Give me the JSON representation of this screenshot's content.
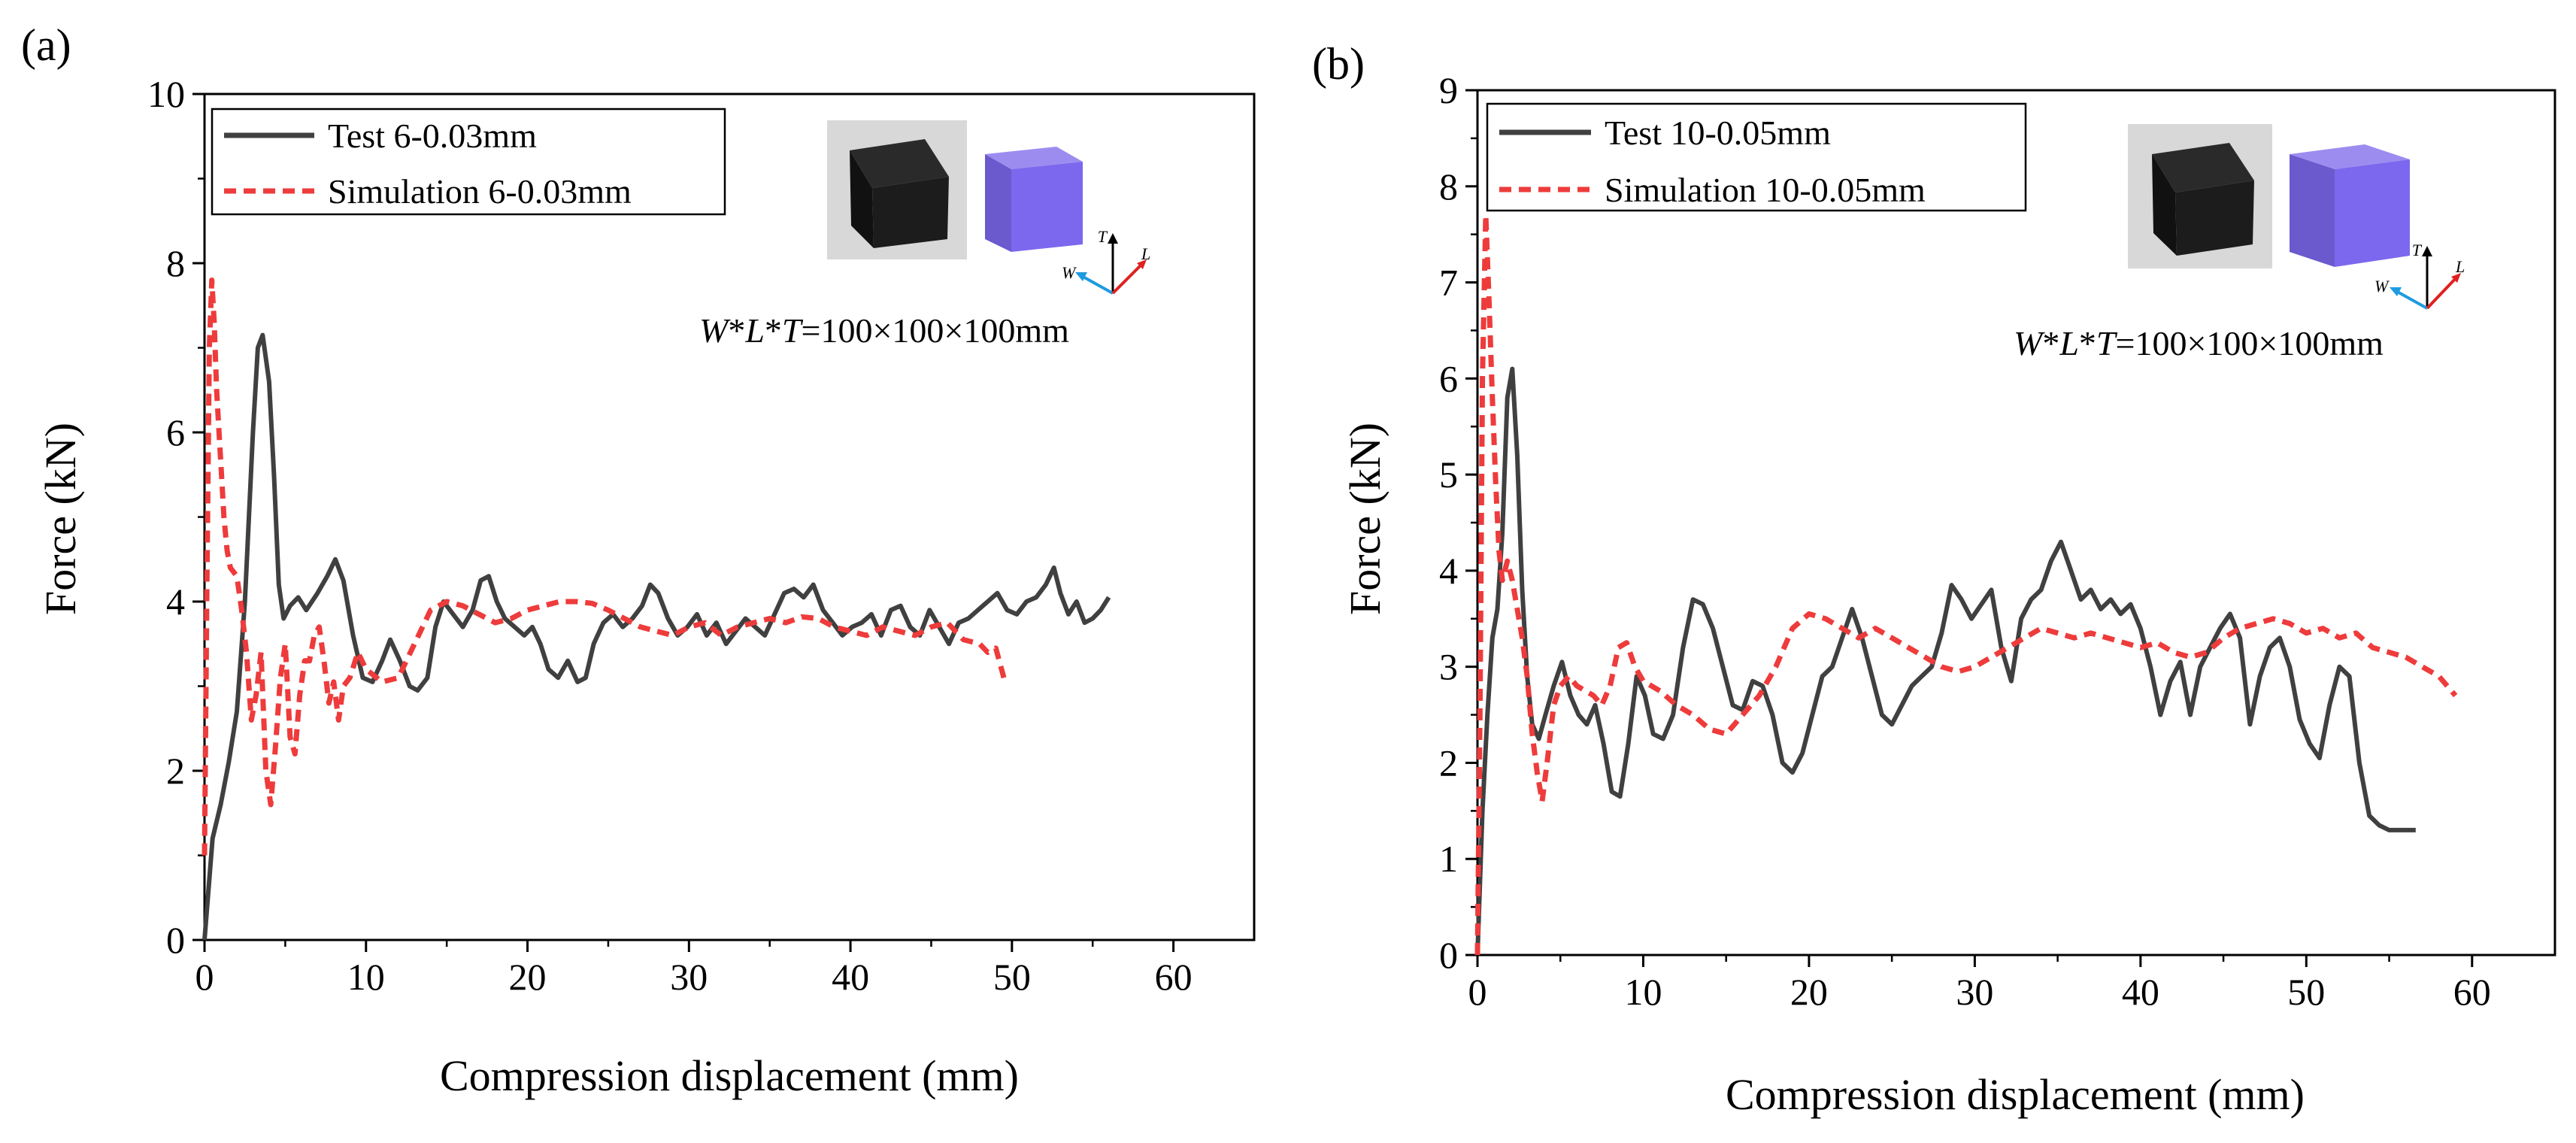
{
  "chart_data": [
    {
      "type": "line",
      "panel_label": "(a)",
      "xlabel": "Compression displacement (mm)",
      "ylabel": "Force (kN)",
      "xlim": [
        0,
        65
      ],
      "ylim": [
        0,
        10
      ],
      "xticks": [
        0,
        10,
        20,
        30,
        40,
        50,
        60
      ],
      "yticks": [
        0,
        2,
        4,
        6,
        8,
        10
      ],
      "legend_position": "top-left",
      "dimension_text": "W*L*T=100×100×100mm",
      "dimension_parts": {
        "w": "W",
        "l": "L",
        "t": "T",
        "rest": "=100×100×100mm"
      },
      "triad_labels": {
        "t": "T",
        "l": "L",
        "w": "W"
      },
      "series": [
        {
          "name": "Test 6-0.03mm",
          "color": "#404040",
          "style": "solid",
          "x": [
            0,
            0.5,
            1,
            1.5,
            2,
            2.5,
            3,
            3.3,
            3.6,
            4,
            4.3,
            4.6,
            4.9,
            5.3,
            5.8,
            6.3,
            7,
            7.6,
            8.1,
            8.6,
            9.2,
            9.8,
            10.4,
            11,
            11.5,
            12.1,
            12.7,
            13.2,
            13.8,
            14.3,
            14.8,
            15.4,
            16,
            16.6,
            17.1,
            17.6,
            18.1,
            18.6,
            19.2,
            19.8,
            20.3,
            20.8,
            21.3,
            21.9,
            22.5,
            23.1,
            23.6,
            24.1,
            24.7,
            25.3,
            25.9,
            26.5,
            27.1,
            27.6,
            28.1,
            28.7,
            29.3,
            29.9,
            30.5,
            31.1,
            31.7,
            32.3,
            32.9,
            33.5,
            34.1,
            34.7,
            35.3,
            35.9,
            36.5,
            37.1,
            37.7,
            38.3,
            38.9,
            39.5,
            40.1,
            40.7,
            41.3,
            41.9,
            42.5,
            43.1,
            43.7,
            44.3,
            44.9,
            45.5,
            46.1,
            46.7,
            47.3,
            47.9,
            48.5,
            49.1,
            49.7,
            50.3,
            50.9,
            51.5,
            52.1,
            52.6,
            53,
            53.5,
            54,
            54.5,
            55,
            55.5,
            56
          ],
          "y": [
            0,
            1.2,
            1.6,
            2.1,
            2.7,
            4.0,
            6.0,
            7.0,
            7.15,
            6.6,
            5.5,
            4.2,
            3.8,
            3.95,
            4.05,
            3.9,
            4.1,
            4.3,
            4.5,
            4.25,
            3.6,
            3.1,
            3.05,
            3.3,
            3.55,
            3.3,
            3.0,
            2.95,
            3.1,
            3.7,
            4.0,
            3.85,
            3.7,
            3.9,
            4.25,
            4.3,
            4.0,
            3.8,
            3.7,
            3.6,
            3.7,
            3.5,
            3.2,
            3.1,
            3.3,
            3.05,
            3.1,
            3.5,
            3.75,
            3.85,
            3.7,
            3.8,
            3.95,
            4.2,
            4.1,
            3.8,
            3.6,
            3.7,
            3.85,
            3.6,
            3.75,
            3.5,
            3.65,
            3.8,
            3.7,
            3.6,
            3.85,
            4.1,
            4.15,
            4.05,
            4.2,
            3.9,
            3.75,
            3.6,
            3.7,
            3.75,
            3.85,
            3.6,
            3.9,
            3.95,
            3.7,
            3.6,
            3.9,
            3.7,
            3.5,
            3.75,
            3.8,
            3.9,
            4.0,
            4.1,
            3.9,
            3.85,
            4.0,
            4.05,
            4.2,
            4.4,
            4.1,
            3.85,
            4.0,
            3.75,
            3.8,
            3.9,
            4.05
          ]
        },
        {
          "name": "Simulation 6-0.03mm",
          "color": "#ee3b3b",
          "style": "dashed",
          "x": [
            0,
            0.15,
            0.3,
            0.45,
            0.6,
            0.75,
            0.9,
            1.05,
            1.2,
            1.4,
            1.6,
            1.8,
            2.0,
            2.3,
            2.6,
            2.9,
            3.2,
            3.5,
            3.8,
            4.1,
            4.4,
            4.7,
            5.0,
            5.3,
            5.6,
            5.9,
            6.2,
            6.5,
            6.8,
            7.1,
            7.4,
            7.7,
            8.0,
            8.3,
            8.6,
            9.0,
            9.5,
            10,
            11,
            12,
            13,
            14,
            15,
            16,
            17,
            18,
            19,
            20,
            21,
            22,
            23,
            24,
            25,
            26,
            27,
            28,
            29,
            30,
            31,
            32,
            33,
            34,
            35,
            36,
            37,
            38,
            39,
            40,
            41,
            42,
            43,
            44,
            45,
            46,
            47,
            48,
            48.5,
            49,
            49.5
          ],
          "y": [
            1.0,
            4.2,
            7.0,
            7.8,
            7.3,
            6.5,
            6.0,
            5.5,
            5.0,
            4.6,
            4.4,
            4.35,
            4.3,
            3.9,
            3.4,
            2.6,
            2.9,
            3.4,
            2.0,
            1.6,
            2.3,
            3.1,
            3.5,
            2.4,
            2.2,
            2.9,
            3.3,
            3.3,
            3.6,
            3.7,
            3.3,
            2.8,
            3.05,
            2.6,
            3.0,
            3.1,
            3.4,
            3.2,
            3.05,
            3.1,
            3.5,
            3.9,
            4.0,
            3.95,
            3.85,
            3.75,
            3.8,
            3.9,
            3.95,
            4.0,
            4.0,
            3.98,
            3.9,
            3.8,
            3.7,
            3.65,
            3.6,
            3.7,
            3.75,
            3.6,
            3.7,
            3.75,
            3.8,
            3.75,
            3.82,
            3.8,
            3.7,
            3.65,
            3.6,
            3.7,
            3.65,
            3.6,
            3.7,
            3.75,
            3.55,
            3.5,
            3.4,
            3.45,
            3.1
          ]
        }
      ]
    },
    {
      "type": "line",
      "panel_label": "(b)",
      "xlabel": "Compression displacement (mm)",
      "ylabel": "Force (kN)",
      "xlim": [
        0,
        65
      ],
      "ylim": [
        0,
        9
      ],
      "xticks": [
        0,
        10,
        20,
        30,
        40,
        50,
        60
      ],
      "yticks": [
        0,
        1,
        2,
        3,
        4,
        5,
        6,
        7,
        8,
        9
      ],
      "legend_position": "top-left",
      "dimension_text": "W*L*T=100×100×100mm",
      "dimension_parts": {
        "w": "W",
        "l": "L",
        "t": "T",
        "rest": "=100×100×100mm"
      },
      "triad_labels": {
        "t": "T",
        "l": "L",
        "w": "W"
      },
      "series": [
        {
          "name": "Test 10-0.05mm",
          "color": "#404040",
          "style": "solid",
          "x": [
            0,
            0.3,
            0.6,
            0.9,
            1.2,
            1.5,
            1.8,
            2.1,
            2.4,
            2.7,
            3.0,
            3.3,
            3.7,
            4.1,
            4.6,
            5.1,
            5.6,
            6.1,
            6.6,
            7.1,
            7.6,
            8.1,
            8.6,
            9.1,
            9.6,
            10.1,
            10.6,
            11.2,
            11.8,
            12.4,
            13.0,
            13.6,
            14.2,
            14.8,
            15.4,
            16.0,
            16.6,
            17.2,
            17.8,
            18.4,
            19.0,
            19.6,
            20.2,
            20.8,
            21.4,
            22.0,
            22.6,
            23.2,
            23.8,
            24.4,
            25.0,
            25.6,
            26.2,
            26.8,
            27.4,
            28.0,
            28.6,
            29.2,
            29.8,
            30.4,
            31.0,
            31.6,
            32.2,
            32.8,
            33.4,
            34.0,
            34.6,
            35.2,
            35.8,
            36.4,
            37.0,
            37.6,
            38.2,
            38.8,
            39.4,
            40.0,
            40.6,
            41.2,
            41.8,
            42.4,
            43.0,
            43.6,
            44.2,
            44.8,
            45.4,
            46.0,
            46.6,
            47.2,
            47.8,
            48.4,
            49.0,
            49.6,
            50.2,
            50.8,
            51.4,
            52.0,
            52.6,
            53.2,
            53.8,
            54.4,
            55.0,
            55.6,
            56.2,
            56.6
          ],
          "y": [
            0,
            1.5,
            2.5,
            3.3,
            3.6,
            4.4,
            5.8,
            6.1,
            5.2,
            3.8,
            2.9,
            2.4,
            2.25,
            2.5,
            2.8,
            3.05,
            2.7,
            2.5,
            2.4,
            2.6,
            2.2,
            1.7,
            1.65,
            2.2,
            2.9,
            2.7,
            2.3,
            2.25,
            2.5,
            3.2,
            3.7,
            3.65,
            3.4,
            3.0,
            2.6,
            2.55,
            2.85,
            2.8,
            2.5,
            2.0,
            1.9,
            2.1,
            2.5,
            2.9,
            3.0,
            3.3,
            3.6,
            3.3,
            2.9,
            2.5,
            2.4,
            2.6,
            2.8,
            2.9,
            3.0,
            3.35,
            3.85,
            3.7,
            3.5,
            3.65,
            3.8,
            3.2,
            2.85,
            3.5,
            3.7,
            3.8,
            4.1,
            4.3,
            4.0,
            3.7,
            3.8,
            3.6,
            3.7,
            3.55,
            3.65,
            3.4,
            3.0,
            2.5,
            2.85,
            3.05,
            2.5,
            3.0,
            3.2,
            3.4,
            3.55,
            3.3,
            2.4,
            2.9,
            3.2,
            3.3,
            3.0,
            2.45,
            2.2,
            2.05,
            2.6,
            3.0,
            2.9,
            2.0,
            1.45,
            1.35,
            1.3,
            1.3,
            1.3,
            1.3
          ]
        },
        {
          "name": "Simulation 10-0.05mm",
          "color": "#ee3b3b",
          "style": "dashed",
          "x": [
            0,
            0.15,
            0.3,
            0.5,
            0.7,
            0.9,
            1.1,
            1.3,
            1.5,
            1.8,
            2.1,
            2.4,
            2.7,
            3.0,
            3.3,
            3.6,
            3.9,
            4.2,
            4.6,
            5.0,
            5.5,
            6.0,
            6.5,
            7.0,
            7.5,
            8.0,
            8.5,
            9.0,
            9.5,
            10,
            11,
            12,
            13,
            14,
            15,
            16,
            17,
            18,
            19,
            20,
            21,
            22,
            23,
            24,
            25,
            26,
            27,
            28,
            29,
            30,
            31,
            32,
            33,
            34,
            35,
            36,
            37,
            38,
            39,
            40,
            41,
            42,
            43,
            44,
            45,
            46,
            47,
            48,
            49,
            50,
            51,
            52,
            53,
            54,
            55,
            56,
            57,
            58,
            59
          ],
          "y": [
            0,
            2.5,
            6.0,
            7.7,
            6.8,
            5.8,
            4.9,
            4.2,
            3.9,
            4.1,
            3.9,
            3.6,
            3.3,
            2.9,
            2.3,
            1.9,
            1.6,
            2.0,
            2.6,
            2.8,
            2.9,
            2.8,
            2.75,
            2.7,
            2.6,
            2.8,
            3.2,
            3.25,
            3.0,
            2.85,
            2.75,
            2.6,
            2.5,
            2.35,
            2.3,
            2.5,
            2.7,
            3.0,
            3.4,
            3.55,
            3.5,
            3.4,
            3.3,
            3.4,
            3.3,
            3.2,
            3.1,
            3.0,
            2.95,
            3.0,
            3.1,
            3.2,
            3.3,
            3.4,
            3.35,
            3.3,
            3.35,
            3.3,
            3.25,
            3.2,
            3.25,
            3.15,
            3.1,
            3.15,
            3.3,
            3.4,
            3.45,
            3.5,
            3.45,
            3.35,
            3.4,
            3.3,
            3.35,
            3.2,
            3.15,
            3.1,
            3.0,
            2.9,
            2.7
          ]
        }
      ]
    }
  ]
}
